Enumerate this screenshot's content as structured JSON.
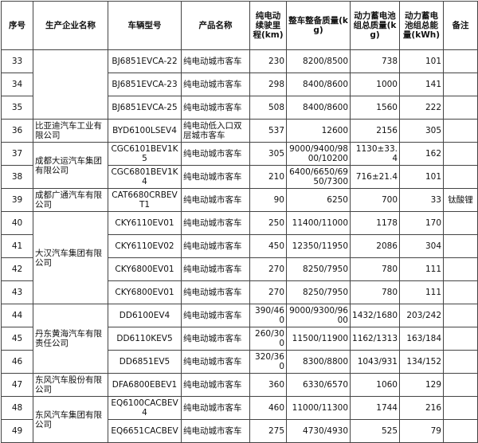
{
  "table": {
    "headers": [
      "序号",
      "生产企业名称",
      "车辆型号",
      "产品名称",
      "纯电动续驶里程(km)",
      "整车整备质量(kg)",
      "动力蓄电池组总质量(kg)",
      "动力蓄电池组总能量(kWh)",
      "备注"
    ],
    "groups": [
      {
        "rows": [
          [
            "33",
            "BJ6851EVCA-22",
            "纯电动城市客车",
            "230",
            "8200/8500",
            "738",
            "101"
          ],
          [
            "34",
            "BJ6851EVCA-23",
            "纯电动城市客车",
            "298",
            "8400/8600",
            "1000",
            "141"
          ],
          [
            "35",
            "BJ6851EVCA-25",
            "纯电动城市客车",
            "508",
            "8400/8600",
            "1560",
            "222"
          ]
        ]
      },
      {
        "company": "比亚迪汽车工业有限公司",
        "rows": [
          [
            "36",
            "BYD6100LSEV4",
            "纯电动低入口双层城市客车",
            "537",
            "12600",
            "2156",
            "305"
          ]
        ]
      },
      {
        "company": "成都大运汽车集团有限公司",
        "rows": [
          [
            "37",
            "CGC6101BEV1K5",
            "纯电动城市客车",
            "305",
            "9000/9400/9800/10200",
            "1130±33.4",
            "162"
          ],
          [
            "38",
            "CGC6801BEV1K4",
            "纯电动城市客车",
            "210",
            "6400/6650/6950/7300",
            "716±21.4",
            "101"
          ]
        ]
      },
      {
        "company": "成都广通汽车有限公司",
        "rows": [
          [
            "39",
            "CAT6680CRBEVT1",
            "纯电动城市客车",
            "90",
            "6250",
            "700",
            "33",
            "钛酸锂"
          ]
        ]
      },
      {
        "company": "大汉汽车集团有限公司",
        "rows": [
          [
            "40",
            "CKY6110EV01",
            "纯电动城市客车",
            "250",
            "11400/11000",
            "1178",
            "170"
          ],
          [
            "41",
            "CKY6110EV02",
            "纯电动城市客车",
            "450",
            "12350/11950",
            "2086",
            "304"
          ],
          [
            "42",
            "CKY6800EV01",
            "纯电动城市客车",
            "270",
            "8250/7950",
            "780",
            "111"
          ],
          [
            "43",
            "CKY6800EV01",
            "纯电动城市客车",
            "270",
            "8250/7950",
            "780",
            "111"
          ]
        ]
      },
      {
        "company": "丹东黄海汽车有限责任公司",
        "rows": [
          [
            "44",
            "DD6100EV4",
            "纯电动城市客车",
            "390/460",
            "9000/9300/9600",
            "1432/1680",
            "203/242"
          ],
          [
            "45",
            "DD6110KEV5",
            "纯电动城市客车",
            "260/300",
            "11500/11900",
            "1162/1313",
            "163/184"
          ],
          [
            "46",
            "DD6851EV5",
            "纯电动城市客车",
            "320/360",
            "8300/8800",
            "1043/931",
            "134/152"
          ]
        ]
      },
      {
        "company": "东风汽车股份有限公司",
        "rows": [
          [
            "47",
            "DFA6800EBEV1",
            "纯电动城市客车",
            "360",
            "6330/6570",
            "1060",
            "129"
          ]
        ]
      },
      {
        "company": "东风汽车集团有限公司",
        "rows": [
          [
            "48",
            "EQ6100CACBEV4",
            "纯电动城市客车",
            "460",
            "11000/11300",
            "1744",
            "216"
          ],
          [
            "49",
            "EQ6651CACBEV",
            "纯电动城市客车",
            "275",
            "4730/4930",
            "525",
            "79"
          ]
        ]
      }
    ]
  }
}
